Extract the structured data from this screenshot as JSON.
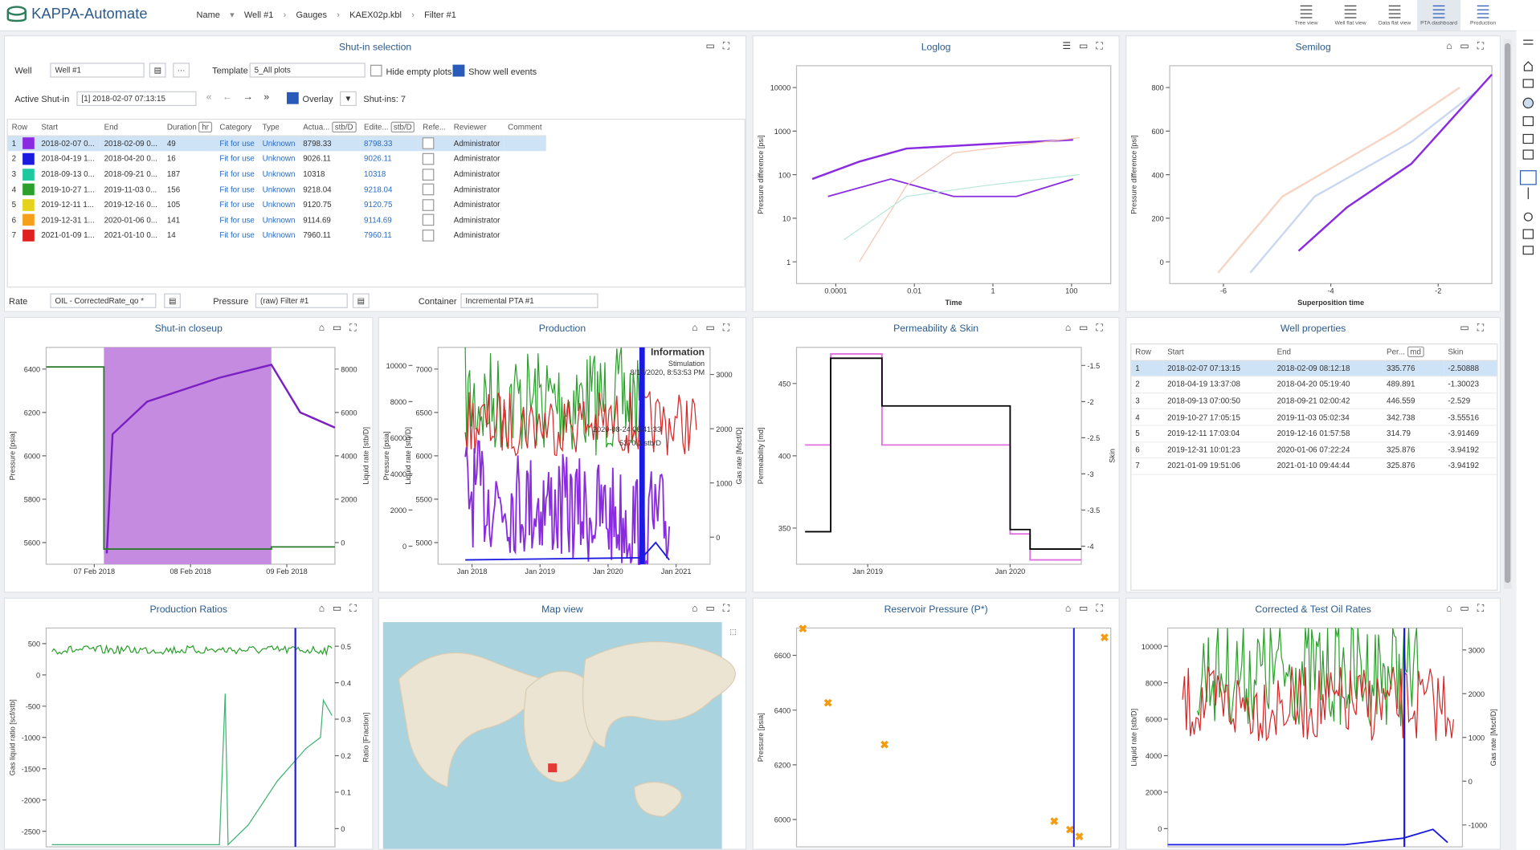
{
  "topbar": {
    "app_name": "KAPPA-Automate",
    "breadcrumbs": [
      "Name",
      "Well #1",
      "Gauges",
      "KAEX02p.kbl",
      "Filter #1"
    ],
    "views": [
      "Tree view",
      "Well flat view",
      "Data flat view",
      "PTA dashboard",
      "Production"
    ]
  },
  "shutin_selection": {
    "title": "Shut-in selection",
    "well_label": "Well",
    "well_value": "Well #1",
    "template_label": "Template",
    "template_value": "5_All plots",
    "hide_empty": "Hide empty plots",
    "show_events": "Show well events",
    "active_label": "Active Shut-in",
    "active_value": "[1] 2018-02-07 07:13:15",
    "overlay": "Overlay",
    "count": "Shut-ins: 7",
    "columns": [
      "Row",
      "Start",
      "End",
      "Duration",
      "hr",
      "Category",
      "Type",
      "Actua...",
      "stb/D",
      "Edite...",
      "stb/D",
      "Refe...",
      "Reviewer",
      "Comment"
    ],
    "rows": [
      [
        "1",
        "2018-02-07 0...",
        "2018-02-09 0...",
        "49",
        "Fit for use",
        "Unknown",
        "8798.33",
        "8798.33",
        "Administrator"
      ],
      [
        "2",
        "2018-04-19 1...",
        "2018-04-20 0...",
        "16",
        "Fit for use",
        "Unknown",
        "9026.11",
        "9026.11",
        "Administrator"
      ],
      [
        "3",
        "2018-09-13 0...",
        "2018-09-21 0...",
        "187",
        "Fit for use",
        "Unknown",
        "10318",
        "10318",
        "Administrator"
      ],
      [
        "4",
        "2019-10-27 1...",
        "2019-11-03 0...",
        "156",
        "Fit for use",
        "Unknown",
        "9218.04",
        "9218.04",
        "Administrator"
      ],
      [
        "5",
        "2019-12-11 1...",
        "2019-12-16 0...",
        "105",
        "Fit for use",
        "Unknown",
        "9120.75",
        "9120.75",
        "Administrator"
      ],
      [
        "6",
        "2019-12-31 1...",
        "2020-01-06 0...",
        "141",
        "Fit for use",
        "Unknown",
        "9114.69",
        "9114.69",
        "Administrator"
      ],
      [
        "7",
        "2021-01-09 1...",
        "2021-01-10 0...",
        "14",
        "Fit for use",
        "Unknown",
        "7960.11",
        "7960.11",
        "Administrator"
      ]
    ],
    "rate_label": "Rate",
    "rate_value": "OIL - CorrectedRate_qo *",
    "pressure_label": "Pressure",
    "pressure_value": "(raw) Filter #1",
    "container_label": "Container",
    "container_value": "Incremental PTA #1"
  },
  "charts": [
    {
      "title": "Loglog",
      "x_label": "Time",
      "y_label": "Pressure difference [psi]",
      "xticks": [
        "0.0001",
        "0.01",
        "1",
        "100"
      ],
      "yticks": [
        "1",
        "10",
        "100",
        "1000",
        "10000"
      ]
    },
    {
      "title": "Semilog",
      "x_label": "Superposition time",
      "y_label": "Pressure difference [psi]",
      "xticks": [
        "-6",
        "-4",
        "-2"
      ],
      "yticks": [
        "0",
        "200",
        "400",
        "600",
        "800"
      ]
    },
    {
      "title": "Shut-in closeup",
      "y_label": "Pressure [psia]",
      "y2_label": "Liquid rate [stb/D]",
      "xticks": [
        "07 Feb 2018",
        "08 Feb 2018",
        "09 Feb 2018"
      ],
      "yticks": [
        "5600",
        "5800",
        "6000",
        "6200",
        "6400"
      ],
      "y2ticks": [
        "0",
        "2000",
        "4000",
        "6000",
        "8000"
      ]
    },
    {
      "title": "Production",
      "y_label": "Pressure [psia]",
      "y_label_2": "Liquid rate [stb/D]",
      "y2_label": "Gas rate [Mscf/D]",
      "xticks": [
        "Jan 2018",
        "Jan 2019",
        "Jan 2020",
        "Jan 2021"
      ],
      "yticks": [
        "5000",
        "5500",
        "6000",
        "6500",
        "7000"
      ],
      "yticks_2": [
        "0",
        "2000",
        "4000",
        "6000",
        "8000",
        "10000"
      ],
      "y2ticks": [
        "0",
        "1000",
        "2000",
        "3000"
      ],
      "annotation": {
        "title": "Information",
        "event": "Stimulation",
        "date": "8/17/2020, 8:53:53 PM"
      },
      "tooltip": {
        "date": "2020-08-24 06:41:33",
        "value": "5370.1 stb/D"
      }
    },
    {
      "title": "Permeability & Skin",
      "y_label": "Permeability [md]",
      "y2_label": "Skin",
      "xticks": [
        "Jan 2019",
        "Jan 2020"
      ],
      "yticks": [
        "350",
        "400",
        "450"
      ],
      "y2ticks": [
        "-4",
        "-3.5",
        "-3",
        "-2.5",
        "-2",
        "-1.5"
      ]
    },
    {
      "title": "Production Ratios",
      "y_label": "Gas liquid ratio [scf/stb]",
      "y2_label": "Ratio [Fraction]",
      "xticks": [],
      "yticks": [
        "-2500",
        "-2000",
        "-1500",
        "-1000",
        "-500",
        "0",
        "500"
      ],
      "y2ticks": [
        "0",
        "0.1",
        "0.2",
        "0.3",
        "0.4",
        "0.5"
      ]
    },
    {
      "title": "Map view"
    },
    {
      "title": "Reservoir Pressure (P*)",
      "y_label": "Pressure [psia]",
      "xticks": [],
      "yticks": [
        "6000",
        "6200",
        "6400",
        "6600"
      ]
    },
    {
      "title": "Corrected & Test Oil Rates",
      "y_label": "Liquid rate [stb/D]",
      "y2_label": "Gas rate [Mscf/D]",
      "xticks": [],
      "yticks": [
        "0",
        "2000",
        "4000",
        "6000",
        "8000",
        "10000"
      ],
      "y2ticks": [
        "-1000",
        "0",
        "1000",
        "2000",
        "3000"
      ]
    }
  ],
  "well_properties": {
    "title": "Well properties",
    "columns": [
      "Row",
      "Start",
      "End",
      "Per...",
      "md",
      "Skin"
    ],
    "rows": [
      [
        "1",
        "2018-02-07 07:13:15",
        "2018-02-09 08:12:18",
        "335.776",
        "-2.50888"
      ],
      [
        "2",
        "2018-04-19 13:37:08",
        "2018-04-20 05:19:40",
        "489.891",
        "-1.30023"
      ],
      [
        "3",
        "2018-09-13 07:00:50",
        "2018-09-21 02:00:42",
        "446.559",
        "-2.529"
      ],
      [
        "4",
        "2019-10-27 17:05:15",
        "2019-11-03 05:02:34",
        "342.738",
        "-3.55516"
      ],
      [
        "5",
        "2019-12-11 17:03:04",
        "2019-12-16 01:57:58",
        "314.79",
        "-3.91469"
      ],
      [
        "6",
        "2019-12-31 10:01:23",
        "2020-01-06 07:22:24",
        "325.876",
        "-3.94192"
      ],
      [
        "7",
        "2021-01-09 19:51:06",
        "2021-01-10 09:44:44",
        "325.876",
        "-3.94192"
      ]
    ]
  }
}
